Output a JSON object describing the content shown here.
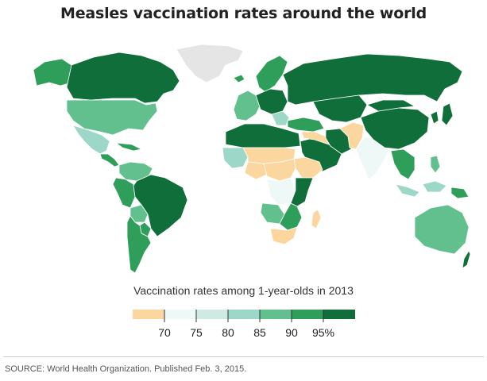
{
  "title": "Measles vaccination rates around the world",
  "legend": {
    "title": "Vaccination rates among 1-year-olds in 2013",
    "bins": [
      {
        "label": "",
        "color": "#fbd79f"
      },
      {
        "label": "70",
        "color": "#eef8f7"
      },
      {
        "label": "75",
        "color": "#cfeae3"
      },
      {
        "label": "80",
        "color": "#9dd7c7"
      },
      {
        "label": "85",
        "color": "#62c08e"
      },
      {
        "label": "90",
        "color": "#2f9e5b"
      },
      {
        "label": "95%",
        "color": "#0f6e3a"
      }
    ]
  },
  "source": "SOURCE: World Health Organization. Published Feb. 3, 2015.",
  "colors": {
    "no_data": "#e5e5e5",
    "border": "#ffffff"
  },
  "regions": [
    {
      "name": "greenland",
      "bin": "none"
    },
    {
      "name": "alaska",
      "bin": 5
    },
    {
      "name": "canada",
      "bin": 6
    },
    {
      "name": "usa",
      "bin": 4
    },
    {
      "name": "mexico",
      "bin": 3
    },
    {
      "name": "central-america",
      "bin": 5
    },
    {
      "name": "caribbean",
      "bin": 5
    },
    {
      "name": "venezuela-colombia",
      "bin": 4
    },
    {
      "name": "ecuador-peru",
      "bin": 5
    },
    {
      "name": "brazil",
      "bin": 6
    },
    {
      "name": "bolivia",
      "bin": 4
    },
    {
      "name": "paraguay",
      "bin": 5
    },
    {
      "name": "argentina-chile",
      "bin": 5
    },
    {
      "name": "iceland-scandinavia",
      "bin": 5
    },
    {
      "name": "western-europe",
      "bin": 4
    },
    {
      "name": "central-europe",
      "bin": 6
    },
    {
      "name": "balkans",
      "bin": 3
    },
    {
      "name": "russia",
      "bin": 6
    },
    {
      "name": "turkey-caucasus",
      "bin": 5
    },
    {
      "name": "middle-east",
      "bin": 6
    },
    {
      "name": "syria-iraq",
      "bin": 0
    },
    {
      "name": "iran",
      "bin": 6
    },
    {
      "name": "afghanistan-pakistan",
      "bin": 0
    },
    {
      "name": "india",
      "bin": 1
    },
    {
      "name": "central-asia",
      "bin": 6
    },
    {
      "name": "china",
      "bin": 6
    },
    {
      "name": "mongolia",
      "bin": 6
    },
    {
      "name": "korea-japan",
      "bin": 6
    },
    {
      "name": "southeast-asia",
      "bin": 5
    },
    {
      "name": "indonesia",
      "bin": 3
    },
    {
      "name": "philippines",
      "bin": 4
    },
    {
      "name": "papua-new-guinea",
      "bin": 5
    },
    {
      "name": "australia",
      "bin": 4
    },
    {
      "name": "new-zealand",
      "bin": 6
    },
    {
      "name": "north-africa",
      "bin": 6
    },
    {
      "name": "west-africa-coast",
      "bin": 3
    },
    {
      "name": "sahel",
      "bin": 0
    },
    {
      "name": "nigeria",
      "bin": 0
    },
    {
      "name": "ethiopia-somalia",
      "bin": 0
    },
    {
      "name": "central-africa",
      "bin": 0
    },
    {
      "name": "drc",
      "bin": 1
    },
    {
      "name": "east-africa",
      "bin": 6
    },
    {
      "name": "angola",
      "bin": 4
    },
    {
      "name": "southern-africa",
      "bin": 5
    },
    {
      "name": "south-africa",
      "bin": 0
    },
    {
      "name": "madagascar",
      "bin": 0
    }
  ]
}
